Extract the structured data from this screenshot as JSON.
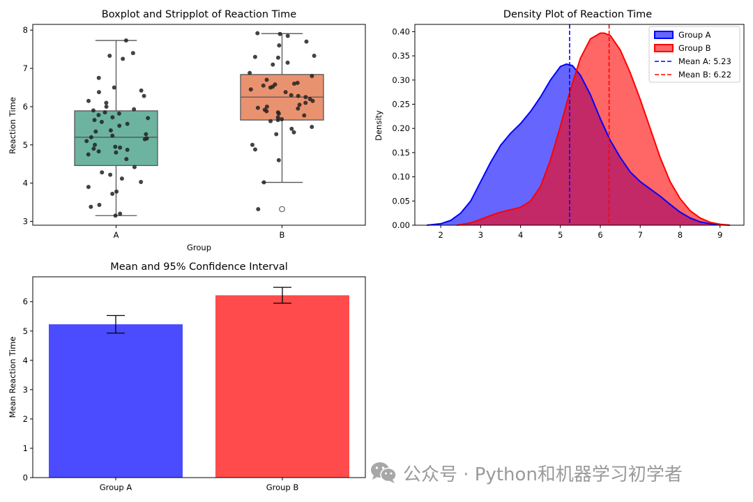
{
  "chart_data": [
    {
      "type": "boxplot",
      "title": "Boxplot and Stripplot of Reaction Time",
      "xlabel": "Group",
      "ylabel": "Reaction Time",
      "categories": [
        "A",
        "B"
      ],
      "ylim": [
        2.9,
        8.15
      ],
      "yticks": [
        3,
        4,
        5,
        6,
        7,
        8
      ],
      "colors": [
        "#6cb49f",
        "#e99270"
      ],
      "boxes": [
        {
          "group": "A",
          "whislo": 3.15,
          "q1": 4.46,
          "med": 5.2,
          "q3": 5.89,
          "whishi": 7.73,
          "fliers": []
        },
        {
          "group": "B",
          "whislo": 4.02,
          "q1": 5.65,
          "med": 6.25,
          "q3": 6.84,
          "whishi": 7.91,
          "fliers": [
            3.32
          ]
        }
      ],
      "points": [
        {
          "group": "A",
          "values": [
            3.15,
            3.2,
            3.38,
            3.43,
            3.72,
            3.78,
            3.9,
            4.03,
            4.12,
            4.22,
            4.28,
            4.42,
            4.63,
            4.75,
            4.8,
            4.83,
            4.87,
            4.9,
            4.93,
            4.95,
            5.0,
            5.1,
            5.15,
            5.17,
            5.2,
            5.24,
            5.28,
            5.35,
            5.38,
            5.5,
            5.55,
            5.6,
            5.65,
            5.7,
            5.72,
            5.78,
            5.82,
            5.85,
            5.9,
            5.93,
            6.0,
            6.1,
            6.15,
            6.28,
            6.38,
            6.42,
            6.5,
            6.75,
            7.25,
            7.33,
            7.4,
            7.73
          ]
        },
        {
          "group": "B",
          "values": [
            3.32,
            4.02,
            4.6,
            4.88,
            5.0,
            5.28,
            5.33,
            5.42,
            5.47,
            5.62,
            5.65,
            5.67,
            5.72,
            5.77,
            5.82,
            5.85,
            5.88,
            5.92,
            5.95,
            5.97,
            6.0,
            6.05,
            6.1,
            6.15,
            6.2,
            6.25,
            6.28,
            6.3,
            6.38,
            6.45,
            6.5,
            6.52,
            6.55,
            6.58,
            6.6,
            6.62,
            6.7,
            6.8,
            6.88,
            7.1,
            7.15,
            7.28,
            7.3,
            7.33,
            7.6,
            7.7,
            7.85,
            7.9,
            7.92
          ]
        }
      ]
    },
    {
      "type": "area",
      "title": "Density Plot of Reaction Time",
      "xlabel": "",
      "ylabel": "Density",
      "xlim": [
        1.35,
        9.6
      ],
      "ylim": [
        0,
        0.415
      ],
      "xticks": [
        2,
        3,
        4,
        5,
        6,
        7,
        8,
        9
      ],
      "yticks": [
        0.0,
        0.05,
        0.1,
        0.15,
        0.2,
        0.25,
        0.3,
        0.35,
        0.4
      ],
      "legend_position": "top-right",
      "series": [
        {
          "name": "Group A",
          "color": "#0000ff",
          "x": [
            1.65,
            2.0,
            2.25,
            2.5,
            2.75,
            3.0,
            3.25,
            3.5,
            3.75,
            4.0,
            4.25,
            4.5,
            4.75,
            5.0,
            5.15,
            5.3,
            5.5,
            5.75,
            6.0,
            6.25,
            6.5,
            6.75,
            7.0,
            7.25,
            7.5,
            7.75,
            8.0,
            8.25,
            8.5,
            8.75,
            9.0,
            9.25
          ],
          "y": [
            0.0,
            0.003,
            0.01,
            0.025,
            0.05,
            0.09,
            0.13,
            0.165,
            0.19,
            0.21,
            0.235,
            0.265,
            0.3,
            0.328,
            0.333,
            0.33,
            0.31,
            0.27,
            0.22,
            0.175,
            0.14,
            0.11,
            0.09,
            0.075,
            0.06,
            0.043,
            0.027,
            0.015,
            0.007,
            0.003,
            0.001,
            0.0
          ]
        },
        {
          "name": "Group B",
          "color": "#ff0000",
          "x": [
            2.4,
            2.75,
            3.0,
            3.25,
            3.5,
            3.75,
            4.0,
            4.25,
            4.5,
            4.75,
            5.0,
            5.25,
            5.5,
            5.75,
            6.0,
            6.1,
            6.25,
            6.5,
            6.75,
            7.0,
            7.25,
            7.5,
            7.75,
            8.0,
            8.25,
            8.5,
            8.75,
            9.0,
            9.25
          ],
          "y": [
            0.0,
            0.005,
            0.012,
            0.02,
            0.027,
            0.032,
            0.037,
            0.05,
            0.08,
            0.135,
            0.205,
            0.28,
            0.345,
            0.385,
            0.397,
            0.397,
            0.392,
            0.362,
            0.315,
            0.26,
            0.2,
            0.14,
            0.09,
            0.055,
            0.03,
            0.015,
            0.006,
            0.002,
            0.0
          ]
        }
      ],
      "vlines": [
        {
          "name": "Mean A: 5.23",
          "x": 5.23,
          "color": "#0000ff",
          "style": "dashed"
        },
        {
          "name": "Mean B: 6.22",
          "x": 6.22,
          "color": "#ff0000",
          "style": "dashed"
        }
      ]
    },
    {
      "type": "bar",
      "title": "Mean and 95% Confidence Interval",
      "xlabel": "",
      "ylabel": "Mean Reaction Time",
      "categories": [
        "Group A",
        "Group B"
      ],
      "values": [
        5.23,
        6.22
      ],
      "errors": [
        0.3,
        0.27
      ],
      "colors": [
        "#4b4bff",
        "#ff4b4b"
      ],
      "ylim": [
        0,
        6.85
      ],
      "yticks": [
        0,
        1,
        2,
        3,
        4,
        5,
        6
      ]
    }
  ],
  "watermark": {
    "text": "公众号 · Python和机器学习初学者",
    "logo_icon": "wechat-icon"
  }
}
